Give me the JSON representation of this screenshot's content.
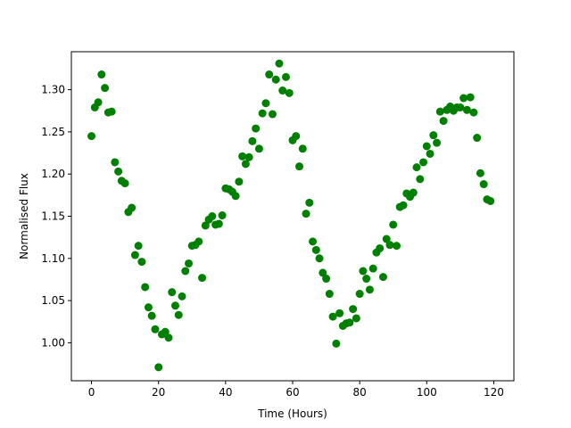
{
  "chart_data": {
    "type": "scatter",
    "title": "",
    "xlabel": "Time (Hours)",
    "ylabel": "Normalised Flux",
    "xlim": [
      -6,
      126
    ],
    "ylim": [
      0.955,
      1.345
    ],
    "xticks": [
      0,
      20,
      40,
      60,
      80,
      100,
      120
    ],
    "yticks": [
      1.0,
      1.05,
      1.1,
      1.15,
      1.2,
      1.25,
      1.3
    ],
    "grid": false,
    "legend": "none",
    "marker_color": "#008000",
    "series": [
      {
        "x": [
          0,
          1,
          2,
          3,
          4,
          5,
          6,
          7,
          8,
          9,
          10,
          11,
          12,
          13,
          14,
          15,
          16,
          17,
          18,
          19,
          20,
          21,
          22,
          23,
          24,
          25,
          26,
          27,
          28,
          29,
          30,
          31,
          32,
          33,
          34,
          35,
          36,
          37,
          38,
          39,
          40,
          41,
          42,
          43,
          44,
          45,
          46,
          47,
          48,
          49,
          50,
          51,
          52,
          53,
          54,
          55,
          56,
          57,
          58,
          59,
          60,
          61,
          62,
          63,
          64,
          65,
          66,
          67,
          68,
          69,
          70,
          71,
          72,
          73,
          74,
          75,
          76,
          77,
          78,
          79,
          80,
          81,
          82,
          83,
          84,
          85,
          86,
          87,
          88,
          89,
          90,
          91,
          92,
          93,
          94,
          95,
          96,
          97,
          98,
          99,
          100,
          101,
          102,
          103,
          104,
          105,
          106,
          107,
          108,
          109,
          110,
          111,
          112,
          113,
          114,
          115,
          116,
          117,
          118,
          119
        ],
        "y": [
          1.245,
          1.279,
          1.285,
          1.318,
          1.302,
          1.273,
          1.274,
          1.214,
          1.203,
          1.192,
          1.189,
          1.155,
          1.16,
          1.104,
          1.115,
          1.096,
          1.066,
          1.042,
          1.032,
          1.016,
          0.971,
          1.01,
          1.013,
          1.006,
          1.06,
          1.044,
          1.033,
          1.055,
          1.085,
          1.094,
          1.115,
          1.116,
          1.12,
          1.077,
          1.139,
          1.146,
          1.15,
          1.14,
          1.141,
          1.151,
          1.183,
          1.182,
          1.179,
          1.174,
          1.191,
          1.221,
          1.212,
          1.22,
          1.239,
          1.254,
          1.23,
          1.272,
          1.284,
          1.318,
          1.271,
          1.312,
          1.331,
          1.299,
          1.315,
          1.296,
          1.24,
          1.245,
          1.209,
          1.23,
          1.153,
          1.166,
          1.12,
          1.11,
          1.1,
          1.083,
          1.076,
          1.058,
          1.031,
          0.999,
          1.035,
          1.02,
          1.023,
          1.024,
          1.04,
          1.029,
          1.058,
          1.085,
          1.076,
          1.063,
          1.088,
          1.107,
          1.112,
          1.078,
          1.123,
          1.116,
          1.14,
          1.115,
          1.161,
          1.163,
          1.177,
          1.173,
          1.178,
          1.208,
          1.194,
          1.214,
          1.233,
          1.224,
          1.246,
          1.237,
          1.274,
          1.263,
          1.276,
          1.28,
          1.275,
          1.279,
          1.279,
          1.29,
          1.276,
          1.291,
          1.273,
          1.243,
          1.201,
          1.188,
          1.17,
          1.168
        ]
      }
    ]
  }
}
